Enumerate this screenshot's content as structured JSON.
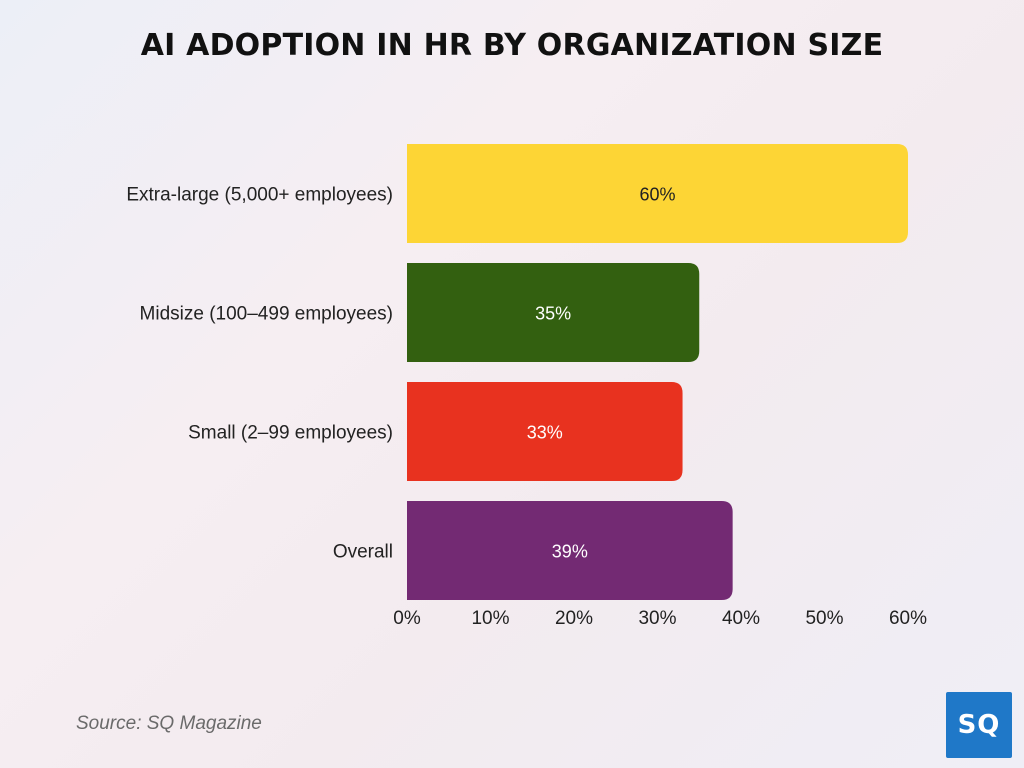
{
  "chart_data": {
    "type": "bar",
    "orientation": "horizontal",
    "title": "AI ADOPTION IN HR BY ORGANIZATION SIZE",
    "categories": [
      "Extra-large (5,000+ employees)",
      "Midsize (100–499 employees)",
      "Small (2–99 employees)",
      "Overall"
    ],
    "values": [
      60,
      35,
      33,
      39
    ],
    "data_labels": [
      "60%",
      "35%",
      "33%",
      "39%"
    ],
    "colors": [
      "#fdd535",
      "#336010",
      "#e8321f",
      "#732a73"
    ],
    "label_colors": [
      "#222222",
      "#ffffff",
      "#ffffff",
      "#ffffff"
    ],
    "xlim": [
      0,
      60
    ],
    "x_ticks": [
      0,
      10,
      20,
      30,
      40,
      50,
      60
    ],
    "x_tick_labels": [
      "0%",
      "10%",
      "20%",
      "30%",
      "40%",
      "50%",
      "60%"
    ],
    "grid": false,
    "legend": "none"
  },
  "source": "Source: SQ Magazine",
  "logo": {
    "text": "SQ",
    "color": "#1f78c8"
  }
}
